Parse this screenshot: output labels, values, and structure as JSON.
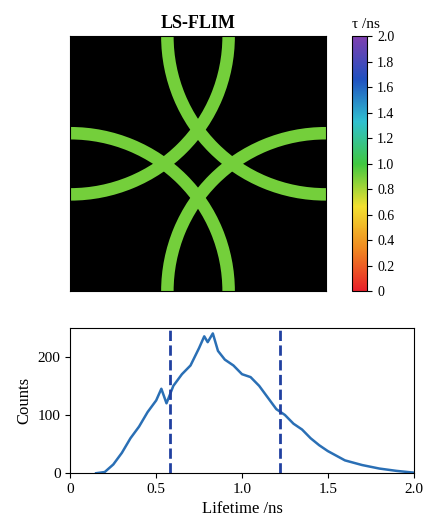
{
  "chart_data": [
    {
      "type": "image",
      "title": "LS-FLIM",
      "lifetime": 0.9,
      "colorbar": {
        "label": "τ /ns",
        "range": [
          0,
          2.0
        ],
        "ticks": [
          0,
          0.2,
          0.4,
          0.6,
          0.8,
          {
            "value": 1.0,
            "label": "1.0"
          },
          1.2,
          1.4,
          1.6,
          1.8,
          {
            "value": 2.0,
            "label": "2.0"
          }
        ]
      }
    },
    {
      "type": "line",
      "x_label": "Lifetime /ns",
      "y_label": "Counts",
      "color": "#2a6fb5",
      "line_style": "solid",
      "x": [
        0.15,
        0.2,
        0.25,
        0.3,
        0.35,
        0.4,
        0.45,
        0.5,
        0.53,
        0.56,
        0.6,
        0.65,
        0.7,
        0.75,
        0.78,
        0.8,
        0.83,
        0.86,
        0.9,
        0.95,
        1.0,
        1.05,
        1.1,
        1.15,
        1.2,
        1.25,
        1.3,
        1.35,
        1.4,
        1.45,
        1.5,
        1.55,
        1.6,
        1.7,
        1.8,
        1.9,
        2.0
      ],
      "values": [
        0,
        2,
        15,
        35,
        60,
        80,
        105,
        125,
        145,
        120,
        150,
        170,
        185,
        215,
        235,
        225,
        240,
        210,
        195,
        185,
        170,
        165,
        150,
        130,
        110,
        100,
        85,
        75,
        60,
        48,
        38,
        30,
        22,
        14,
        8,
        4,
        1
      ],
      "thresholds": [
        0.58,
        1.22
      ],
      "xlim": [
        0,
        2.0
      ],
      "xticks": [
        0,
        0.5,
        {
          "value": 1.0,
          "label": "1.0"
        },
        1.5,
        {
          "value": 2.0,
          "label": "2.0"
        }
      ],
      "ylim": [
        0,
        250
      ],
      "yticks": [
        0,
        100,
        200
      ]
    }
  ]
}
